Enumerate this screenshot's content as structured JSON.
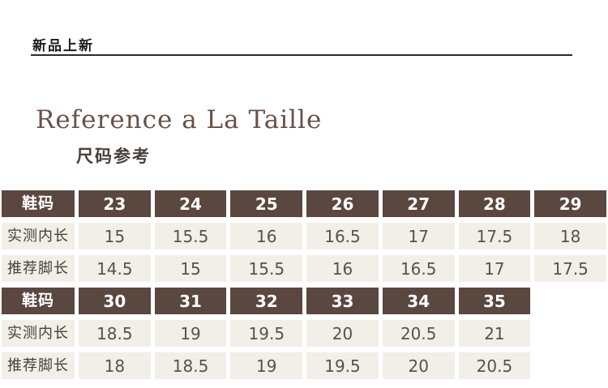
{
  "page": {
    "banner_label": "新品上新",
    "title": "Reference a La Taille",
    "subtitle": "尺码参考"
  },
  "colors": {
    "header_brown": "#5a473f",
    "cell_beige": "#f1efe8",
    "title_brown": "#6a5047",
    "rule_black": "#2b2b2b"
  },
  "size_table": {
    "blocks": [
      {
        "header_label": "鞋码",
        "sizes": [
          "23",
          "24",
          "25",
          "26",
          "27",
          "28",
          "29"
        ],
        "rows": [
          {
            "label": "实测内长",
            "values": [
              "15",
              "15.5",
              "16",
              "16.5",
              "17",
              "17.5",
              "18"
            ]
          },
          {
            "label": "推荐脚长",
            "values": [
              "14.5",
              "15",
              "15.5",
              "16",
              "16.5",
              "17",
              "17.5"
            ]
          }
        ]
      },
      {
        "header_label": "鞋码",
        "sizes": [
          "30",
          "31",
          "32",
          "33",
          "34",
          "35"
        ],
        "rows": [
          {
            "label": "实测内长",
            "values": [
              "18.5",
              "19",
              "19.5",
              "20",
              "20.5",
              "21"
            ]
          },
          {
            "label": "推荐脚长",
            "values": [
              "18",
              "18.5",
              "19",
              "19.5",
              "20",
              "20.5"
            ]
          }
        ]
      }
    ]
  }
}
